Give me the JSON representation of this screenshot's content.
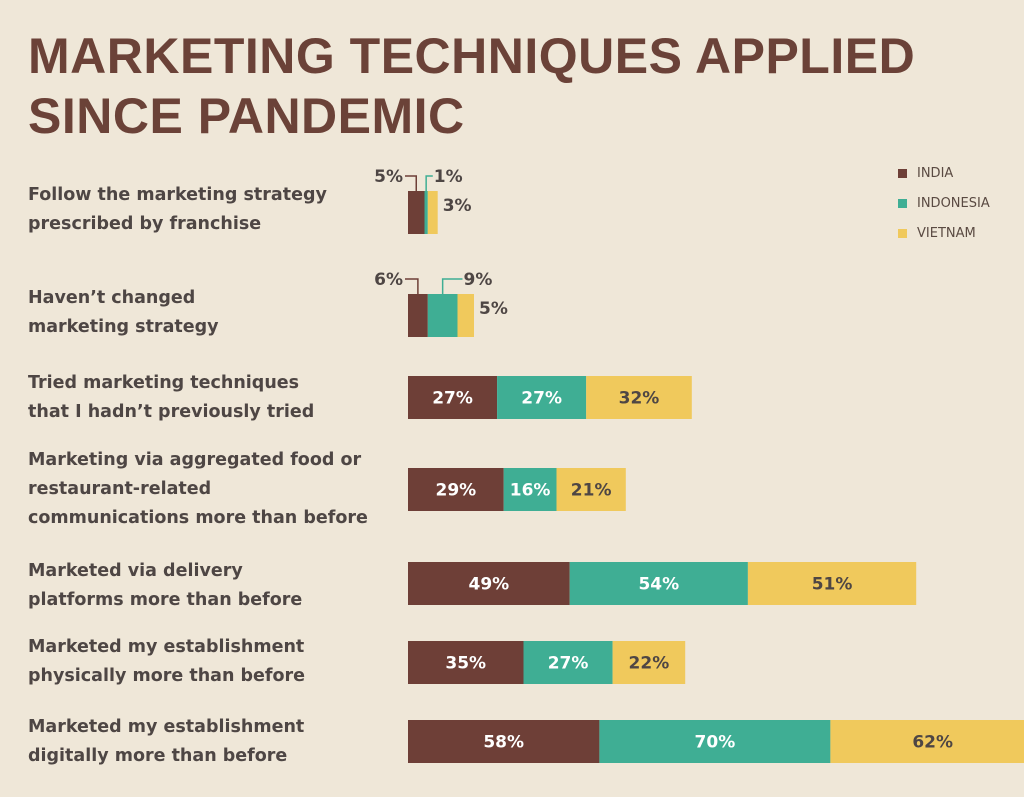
{
  "title": {
    "line1": "MARKETING TECHNIQUES APPLIED",
    "line2": "SINCE PANDEMIC"
  },
  "legend": [
    {
      "label": "INDIA",
      "color": "#6e3f37"
    },
    {
      "label": "INDONESIA",
      "color": "#3fae94"
    },
    {
      "label": "VIETNAM",
      "color": "#f0c95c"
    }
  ],
  "chart_data": {
    "type": "bar",
    "orientation": "horizontal",
    "stacked": true,
    "title": "MARKETING TECHNIQUES APPLIED SINCE PANDEMIC",
    "legend_position": "top-right",
    "grid": false,
    "categories": [
      [
        "Follow the marketing strategy",
        "prescribed by franchise"
      ],
      [
        "Haven’t changed",
        "marketing strategy"
      ],
      [
        "Tried marketing techniques",
        "that I hadn’t previously tried"
      ],
      [
        "Marketing via aggregated food or",
        "restaurant-related",
        "communications more than before"
      ],
      [
        "Marketed via delivery",
        "platforms more than before"
      ],
      [
        "Marketed my establishment",
        "physically more than before"
      ],
      [
        "Marketed my establishment",
        "digitally more than before"
      ]
    ],
    "series": [
      {
        "name": "INDIA",
        "color": "#6e3f37",
        "values": [
          5,
          6,
          27,
          29,
          49,
          35,
          58
        ]
      },
      {
        "name": "INDONESIA",
        "color": "#3fae94",
        "values": [
          1,
          9,
          27,
          16,
          54,
          27,
          70
        ]
      },
      {
        "name": "VIETNAM",
        "color": "#f0c95c",
        "values": [
          3,
          5,
          32,
          21,
          51,
          22,
          62
        ]
      }
    ],
    "value_suffix": "%"
  }
}
